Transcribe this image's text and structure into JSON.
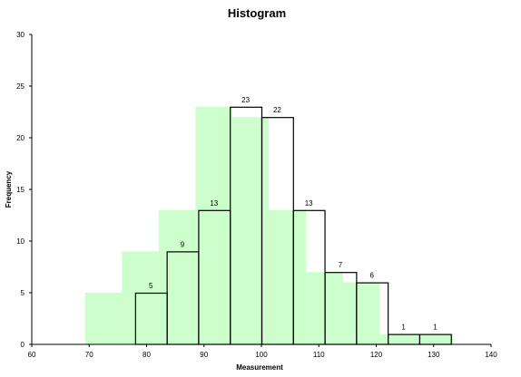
{
  "chart_data": {
    "type": "bar",
    "title": "Histogram",
    "xlabel": "Measurement",
    "ylabel": "Frequency",
    "xlim": [
      60,
      140
    ],
    "ylim": [
      0,
      30
    ],
    "xticks": [
      60,
      70,
      80,
      90,
      100,
      110,
      120,
      130,
      140
    ],
    "yticks": [
      0,
      5,
      10,
      15,
      20,
      25,
      30
    ],
    "grid": false,
    "legend": "none",
    "series": [
      {
        "style": "filled",
        "color": "#ccffcc",
        "bins": [
          {
            "x0": 69.3,
            "x1": 75.7,
            "value": 5
          },
          {
            "x0": 75.7,
            "x1": 82.1,
            "value": 9
          },
          {
            "x0": 82.1,
            "x1": 88.5,
            "value": 13
          },
          {
            "x0": 88.5,
            "x1": 94.9,
            "value": 23
          },
          {
            "x0": 94.9,
            "x1": 101.3,
            "value": 22
          },
          {
            "x0": 101.3,
            "x1": 107.8,
            "value": 13
          },
          {
            "x0": 107.8,
            "x1": 114.2,
            "value": 7
          },
          {
            "x0": 114.2,
            "x1": 120.6,
            "value": 6
          },
          {
            "x0": 120.6,
            "x1": 127.0,
            "value": 1
          },
          {
            "x0": 127.0,
            "x1": 133.4,
            "value": 1
          }
        ]
      },
      {
        "style": "outline",
        "color": "#000000",
        "show_labels": true,
        "bins": [
          {
            "x0": 78.0,
            "x1": 83.5,
            "value": 5
          },
          {
            "x0": 83.5,
            "x1": 89.0,
            "value": 9
          },
          {
            "x0": 89.0,
            "x1": 94.5,
            "value": 13
          },
          {
            "x0": 94.5,
            "x1": 100.0,
            "value": 23
          },
          {
            "x0": 100.0,
            "x1": 105.5,
            "value": 22
          },
          {
            "x0": 105.5,
            "x1": 111.0,
            "value": 13
          },
          {
            "x0": 111.0,
            "x1": 116.5,
            "value": 7
          },
          {
            "x0": 116.5,
            "x1": 122.0,
            "value": 6
          },
          {
            "x0": 122.0,
            "x1": 127.5,
            "value": 1
          },
          {
            "x0": 127.5,
            "x1": 133.0,
            "value": 1
          }
        ]
      }
    ]
  }
}
